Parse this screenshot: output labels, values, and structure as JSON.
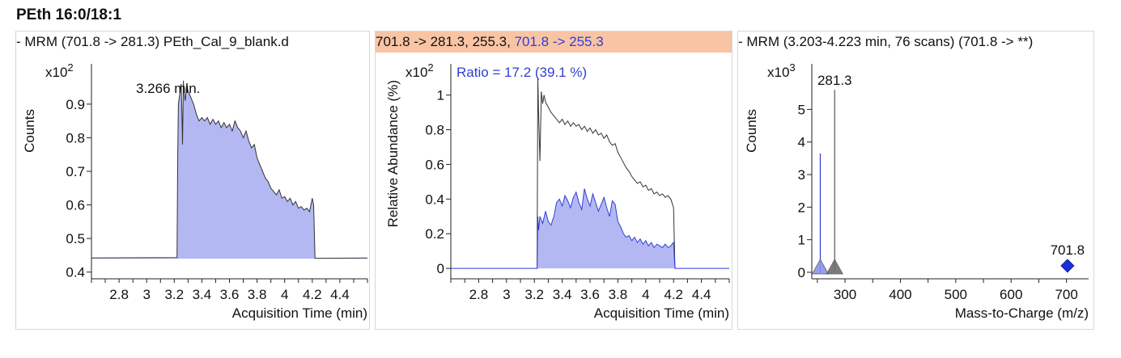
{
  "page_title": "PEth 16:0/18:1",
  "panels": [
    {
      "header": [
        {
          "text": "- MRM (701.8 -> 281.3) PEth_Cal_9_blank.d",
          "color": "#111111"
        }
      ],
      "header_bg": "",
      "ylabel": "Counts",
      "scale_base": "x10",
      "scale_exp": "2",
      "xlabel": "Acquisition Time (min)",
      "annotation": "3.266 min."
    },
    {
      "header": [
        {
          "text": "701.8 -> 281.3, 255.3, ",
          "color": "#111111"
        },
        {
          "text": "701.8 -> 255.3",
          "color": "#2f3fd6"
        }
      ],
      "header_bg": "#f8c4a4",
      "ylabel": "Relative Abundance (%)",
      "scale_base": "x10",
      "scale_exp": "2",
      "xlabel": "Acquisition Time (min)",
      "annotation": "Ratio = 17.2 (39.1 %)"
    },
    {
      "header": [
        {
          "text": "- MRM (3.203-4.223 min, 76 scans) (701.8 -> **)",
          "color": "#111111"
        }
      ],
      "header_bg": "",
      "ylabel": "Counts",
      "scale_base": "x10",
      "scale_exp": "3",
      "xlabel": "Mass-to-Charge (m/z)",
      "annotation": ""
    }
  ],
  "chart_data": [
    {
      "type": "area",
      "xlim": [
        2.6,
        4.6
      ],
      "ylim": [
        0.38,
        1.02
      ],
      "xticks": [
        2.8,
        3,
        3.2,
        3.4,
        3.6,
        3.8,
        4,
        4.2,
        4.4
      ],
      "xtick_labels": [
        "2.8",
        "3",
        "3.2",
        "3.4",
        "3.6",
        "3.8",
        "4",
        "4.2",
        "4.4"
      ],
      "yticks": [
        0.4,
        0.5,
        0.6,
        0.7,
        0.8,
        0.9
      ],
      "ytick_labels": [
        "0.4",
        "0.5",
        "0.6",
        "0.7",
        "0.8",
        "0.9"
      ],
      "baseline": 0.44,
      "fill_color": "#b4b8f2",
      "line_color": "#333333",
      "x": [
        2.6,
        3.22,
        3.225,
        3.23,
        3.24,
        3.25,
        3.255,
        3.26,
        3.266,
        3.27,
        3.28,
        3.29,
        3.3,
        3.32,
        3.34,
        3.36,
        3.38,
        3.4,
        3.42,
        3.44,
        3.46,
        3.48,
        3.5,
        3.52,
        3.54,
        3.56,
        3.58,
        3.6,
        3.62,
        3.64,
        3.66,
        3.68,
        3.7,
        3.72,
        3.74,
        3.76,
        3.78,
        3.8,
        3.82,
        3.84,
        3.86,
        3.88,
        3.9,
        3.92,
        3.94,
        3.96,
        3.98,
        4.0,
        4.02,
        4.04,
        4.06,
        4.08,
        4.1,
        4.12,
        4.14,
        4.16,
        4.18,
        4.19,
        4.2,
        4.21,
        4.22,
        4.6
      ],
      "y": [
        0.442,
        0.443,
        0.75,
        0.9,
        0.93,
        0.96,
        0.88,
        0.78,
        0.97,
        0.94,
        0.91,
        0.96,
        0.94,
        0.92,
        0.9,
        0.87,
        0.85,
        0.86,
        0.85,
        0.86,
        0.84,
        0.855,
        0.84,
        0.85,
        0.83,
        0.845,
        0.83,
        0.84,
        0.82,
        0.85,
        0.83,
        0.82,
        0.8,
        0.82,
        0.79,
        0.77,
        0.78,
        0.74,
        0.72,
        0.7,
        0.68,
        0.67,
        0.65,
        0.64,
        0.63,
        0.645,
        0.62,
        0.625,
        0.61,
        0.62,
        0.6,
        0.61,
        0.59,
        0.595,
        0.585,
        0.59,
        0.58,
        0.6,
        0.62,
        0.6,
        0.441,
        0.442
      ]
    },
    {
      "type": "area",
      "xlim": [
        2.6,
        4.6
      ],
      "ylim": [
        -0.06,
        1.18
      ],
      "xticks": [
        2.8,
        3,
        3.2,
        3.4,
        3.6,
        3.8,
        4,
        4.2,
        4.4
      ],
      "xtick_labels": [
        "2.8",
        "3",
        "3.2",
        "3.4",
        "3.6",
        "3.8",
        "4",
        "4.2",
        "4.4"
      ],
      "yticks": [
        0,
        0.2,
        0.4,
        0.6,
        0.8,
        1
      ],
      "ytick_labels": [
        "0",
        "0.2",
        "0.4",
        "0.6",
        "0.8",
        "1"
      ],
      "series": [
        {
          "name": "701.8 -> 281.3",
          "fill": false,
          "color": "#333333",
          "x": [
            3.22,
            3.225,
            3.23,
            3.24,
            3.25,
            3.26,
            3.27,
            3.28,
            3.3,
            3.32,
            3.34,
            3.36,
            3.38,
            3.4,
            3.42,
            3.44,
            3.46,
            3.48,
            3.5,
            3.52,
            3.54,
            3.56,
            3.58,
            3.6,
            3.62,
            3.64,
            3.66,
            3.68,
            3.7,
            3.72,
            3.74,
            3.76,
            3.78,
            3.8,
            3.82,
            3.84,
            3.86,
            3.88,
            3.9,
            3.92,
            3.94,
            3.96,
            3.98,
            4.0,
            4.02,
            4.04,
            4.06,
            4.08,
            4.1,
            4.12,
            4.14,
            4.16,
            4.18,
            4.2,
            4.21
          ],
          "y": [
            0.0,
            1.1,
            0.9,
            0.62,
            1.02,
            0.95,
            1.0,
            0.96,
            0.93,
            0.9,
            0.88,
            0.86,
            0.84,
            0.86,
            0.83,
            0.85,
            0.82,
            0.84,
            0.82,
            0.83,
            0.8,
            0.82,
            0.79,
            0.81,
            0.78,
            0.8,
            0.77,
            0.78,
            0.75,
            0.77,
            0.73,
            0.71,
            0.72,
            0.67,
            0.64,
            0.61,
            0.58,
            0.56,
            0.53,
            0.51,
            0.49,
            0.5,
            0.47,
            0.48,
            0.45,
            0.46,
            0.43,
            0.44,
            0.42,
            0.43,
            0.41,
            0.42,
            0.4,
            0.35,
            0.0
          ]
        },
        {
          "name": "701.8 -> 255.3",
          "fill": true,
          "color": "#2f3fd6",
          "fill_color": "#b4b8f2",
          "x": [
            2.6,
            3.22,
            3.225,
            3.23,
            3.24,
            3.26,
            3.28,
            3.3,
            3.32,
            3.34,
            3.36,
            3.38,
            3.4,
            3.42,
            3.44,
            3.46,
            3.48,
            3.5,
            3.52,
            3.54,
            3.56,
            3.58,
            3.6,
            3.62,
            3.64,
            3.66,
            3.68,
            3.7,
            3.72,
            3.74,
            3.76,
            3.78,
            3.8,
            3.82,
            3.84,
            3.86,
            3.88,
            3.9,
            3.92,
            3.94,
            3.96,
            3.98,
            4.0,
            4.02,
            4.04,
            4.06,
            4.08,
            4.1,
            4.12,
            4.14,
            4.16,
            4.18,
            4.2,
            4.21,
            4.6
          ],
          "y": [
            0.0,
            0.0,
            0.3,
            0.22,
            0.3,
            0.26,
            0.33,
            0.27,
            0.25,
            0.3,
            0.38,
            0.4,
            0.36,
            0.42,
            0.39,
            0.35,
            0.41,
            0.44,
            0.38,
            0.34,
            0.46,
            0.4,
            0.36,
            0.43,
            0.38,
            0.33,
            0.37,
            0.41,
            0.35,
            0.3,
            0.39,
            0.37,
            0.27,
            0.24,
            0.2,
            0.18,
            0.19,
            0.16,
            0.18,
            0.15,
            0.17,
            0.14,
            0.16,
            0.13,
            0.15,
            0.12,
            0.14,
            0.13,
            0.12,
            0.14,
            0.12,
            0.13,
            0.15,
            0.0,
            0.0
          ]
        }
      ]
    },
    {
      "type": "bar",
      "xlim": [
        240,
        740
      ],
      "ylim": [
        -0.2,
        6.4
      ],
      "xticks": [
        300,
        400,
        500,
        600,
        700
      ],
      "xtick_labels": [
        "300",
        "400",
        "500",
        "600",
        "700"
      ],
      "yticks": [
        0,
        1,
        2,
        3,
        4,
        5
      ],
      "ytick_labels": [
        "0",
        "1",
        "2",
        "3",
        "4",
        "5"
      ],
      "peaks": [
        {
          "mz": 255.3,
          "value": 3.65,
          "label": "",
          "color": "#2f3fd6",
          "marker": "triangle",
          "marker_color": "#8c93ee"
        },
        {
          "mz": 281.3,
          "value": 5.6,
          "label": "281.3",
          "color": "#555555",
          "marker": "triangle",
          "marker_color": "#6e6e6e"
        },
        {
          "mz": 701.8,
          "value": 0.2,
          "label": "701.8",
          "color": "#1a2fd6",
          "marker": "diamond",
          "marker_color": "#1a2fd6"
        }
      ]
    }
  ]
}
